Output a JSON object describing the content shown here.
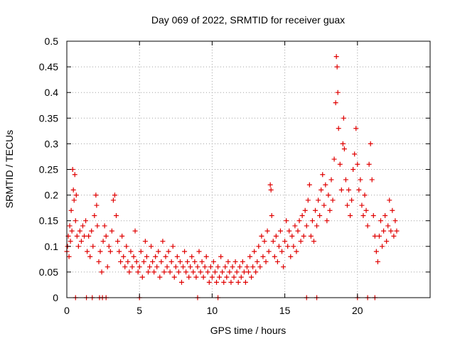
{
  "chart_data": {
    "type": "scatter",
    "title": "Day 069 of 2022, SRMTID for receiver guax",
    "xlabel": "GPS time / hours",
    "ylabel": "SRMTID / TECUs",
    "xlim": [
      0,
      25
    ],
    "ylim": [
      0,
      0.5
    ],
    "x_ticks": [
      0,
      5,
      10,
      15,
      20
    ],
    "x_tick_labels": [
      "0",
      "5",
      "10",
      "15",
      "20"
    ],
    "y_ticks": [
      0,
      0.05,
      0.1,
      0.15,
      0.2,
      0.25,
      0.3,
      0.35,
      0.4,
      0.45,
      0.5
    ],
    "y_tick_labels": [
      "0",
      "0.05",
      "0.1",
      "0.15",
      "0.2",
      "0.25",
      "0.3",
      "0.35",
      "0.4",
      "0.45",
      "0.5"
    ],
    "grid": true,
    "marker": "+",
    "color": "#e00000",
    "series": [
      {
        "name": "SRMTID",
        "points": [
          [
            0.0,
            0.09
          ],
          [
            0.05,
            0.1
          ],
          [
            0.1,
            0.12
          ],
          [
            0.15,
            0.08
          ],
          [
            0.2,
            0.14
          ],
          [
            0.25,
            0.11
          ],
          [
            0.3,
            0.17
          ],
          [
            0.35,
            0.13
          ],
          [
            0.4,
            0.25
          ],
          [
            0.45,
            0.21
          ],
          [
            0.5,
            0.19
          ],
          [
            0.55,
            0.24
          ],
          [
            0.6,
            0.15
          ],
          [
            0.65,
            0.2
          ],
          [
            0.7,
            0.12
          ],
          [
            0.8,
            0.1
          ],
          [
            0.9,
            0.13
          ],
          [
            1.0,
            0.11
          ],
          [
            1.1,
            0.14
          ],
          [
            1.2,
            0.12
          ],
          [
            1.3,
            0.15
          ],
          [
            1.4,
            0.09
          ],
          [
            1.5,
            0.12
          ],
          [
            1.6,
            0.08
          ],
          [
            1.7,
            0.13
          ],
          [
            1.8,
            0.1
          ],
          [
            1.9,
            0.16
          ],
          [
            2.0,
            0.2
          ],
          [
            2.05,
            0.18
          ],
          [
            2.1,
            0.14
          ],
          [
            2.2,
            0.07
          ],
          [
            2.3,
            0.09
          ],
          [
            2.4,
            0.05
          ],
          [
            2.5,
            0.11
          ],
          [
            2.6,
            0.14
          ],
          [
            2.7,
            0.12
          ],
          [
            2.8,
            0.06
          ],
          [
            2.9,
            0.1
          ],
          [
            3.0,
            0.09
          ],
          [
            3.1,
            0.13
          ],
          [
            3.2,
            0.19
          ],
          [
            3.3,
            0.2
          ],
          [
            3.4,
            0.16
          ],
          [
            3.5,
            0.11
          ],
          [
            3.6,
            0.09
          ],
          [
            3.7,
            0.07
          ],
          [
            3.8,
            0.12
          ],
          [
            3.9,
            0.08
          ],
          [
            4.0,
            0.06
          ],
          [
            4.1,
            0.1
          ],
          [
            4.2,
            0.07
          ],
          [
            4.3,
            0.05
          ],
          [
            4.4,
            0.09
          ],
          [
            4.5,
            0.06
          ],
          [
            4.6,
            0.08
          ],
          [
            4.7,
            0.13
          ],
          [
            4.8,
            0.07
          ],
          [
            4.9,
            0.05
          ],
          [
            5.0,
            0.06
          ],
          [
            5.1,
            0.09
          ],
          [
            5.2,
            0.04
          ],
          [
            5.3,
            0.07
          ],
          [
            5.4,
            0.11
          ],
          [
            5.5,
            0.08
          ],
          [
            5.6,
            0.05
          ],
          [
            5.7,
            0.06
          ],
          [
            5.8,
            0.1
          ],
          [
            5.9,
            0.07
          ],
          [
            6.0,
            0.05
          ],
          [
            6.1,
            0.08
          ],
          [
            6.2,
            0.06
          ],
          [
            6.3,
            0.09
          ],
          [
            6.4,
            0.04
          ],
          [
            6.5,
            0.07
          ],
          [
            6.6,
            0.11
          ],
          [
            6.7,
            0.05
          ],
          [
            6.8,
            0.08
          ],
          [
            6.9,
            0.06
          ],
          [
            7.0,
            0.09
          ],
          [
            7.1,
            0.05
          ],
          [
            7.2,
            0.07
          ],
          [
            7.3,
            0.1
          ],
          [
            7.4,
            0.04
          ],
          [
            7.5,
            0.06
          ],
          [
            7.6,
            0.08
          ],
          [
            7.7,
            0.05
          ],
          [
            7.8,
            0.07
          ],
          [
            7.9,
            0.03
          ],
          [
            8.0,
            0.06
          ],
          [
            8.1,
            0.09
          ],
          [
            8.2,
            0.05
          ],
          [
            8.3,
            0.07
          ],
          [
            8.4,
            0.04
          ],
          [
            8.5,
            0.06
          ],
          [
            8.6,
            0.08
          ],
          [
            8.7,
            0.05
          ],
          [
            8.8,
            0.07
          ],
          [
            8.9,
            0.04
          ],
          [
            9.0,
            0.06
          ],
          [
            9.1,
            0.09
          ],
          [
            9.2,
            0.05
          ],
          [
            9.3,
            0.07
          ],
          [
            9.4,
            0.04
          ],
          [
            9.5,
            0.06
          ],
          [
            9.6,
            0.08
          ],
          [
            9.7,
            0.05
          ],
          [
            9.8,
            0.03
          ],
          [
            9.9,
            0.06
          ],
          [
            10.0,
            0.04
          ],
          [
            10.1,
            0.07
          ],
          [
            10.2,
            0.05
          ],
          [
            10.3,
            0.03
          ],
          [
            10.4,
            0.06
          ],
          [
            10.5,
            0.04
          ],
          [
            10.6,
            0.08
          ],
          [
            10.7,
            0.05
          ],
          [
            10.8,
            0.03
          ],
          [
            10.9,
            0.06
          ],
          [
            11.0,
            0.04
          ],
          [
            11.1,
            0.07
          ],
          [
            11.2,
            0.05
          ],
          [
            11.3,
            0.03
          ],
          [
            11.4,
            0.06
          ],
          [
            11.5,
            0.04
          ],
          [
            11.6,
            0.07
          ],
          [
            11.7,
            0.05
          ],
          [
            11.8,
            0.03
          ],
          [
            11.9,
            0.06
          ],
          [
            12.0,
            0.04
          ],
          [
            12.1,
            0.07
          ],
          [
            12.2,
            0.05
          ],
          [
            12.3,
            0.03
          ],
          [
            12.4,
            0.06
          ],
          [
            12.5,
            0.05
          ],
          [
            12.6,
            0.08
          ],
          [
            12.7,
            0.04
          ],
          [
            12.8,
            0.06
          ],
          [
            12.9,
            0.09
          ],
          [
            13.0,
            0.05
          ],
          [
            13.1,
            0.07
          ],
          [
            13.2,
            0.1
          ],
          [
            13.3,
            0.06
          ],
          [
            13.4,
            0.12
          ],
          [
            13.5,
            0.08
          ],
          [
            13.6,
            0.11
          ],
          [
            13.7,
            0.07
          ],
          [
            13.8,
            0.13
          ],
          [
            13.9,
            0.09
          ],
          [
            14.0,
            0.22
          ],
          [
            14.05,
            0.21
          ],
          [
            14.1,
            0.16
          ],
          [
            14.2,
            0.11
          ],
          [
            14.3,
            0.08
          ],
          [
            14.4,
            0.12
          ],
          [
            14.5,
            0.07
          ],
          [
            14.6,
            0.1
          ],
          [
            14.7,
            0.13
          ],
          [
            14.8,
            0.09
          ],
          [
            14.9,
            0.06
          ],
          [
            15.0,
            0.11
          ],
          [
            15.1,
            0.15
          ],
          [
            15.2,
            0.1
          ],
          [
            15.3,
            0.13
          ],
          [
            15.4,
            0.08
          ],
          [
            15.5,
            0.12
          ],
          [
            15.6,
            0.1
          ],
          [
            15.7,
            0.14
          ],
          [
            15.8,
            0.09
          ],
          [
            15.9,
            0.13
          ],
          [
            16.0,
            0.15
          ],
          [
            16.1,
            0.11
          ],
          [
            16.2,
            0.16
          ],
          [
            16.3,
            0.12
          ],
          [
            16.4,
            0.17
          ],
          [
            16.5,
            0.14
          ],
          [
            16.6,
            0.19
          ],
          [
            16.7,
            0.22
          ],
          [
            16.8,
            0.12
          ],
          [
            16.9,
            0.15
          ],
          [
            17.0,
            0.11
          ],
          [
            17.1,
            0.17
          ],
          [
            17.2,
            0.14
          ],
          [
            17.3,
            0.19
          ],
          [
            17.4,
            0.16
          ],
          [
            17.5,
            0.21
          ],
          [
            17.6,
            0.24
          ],
          [
            17.7,
            0.18
          ],
          [
            17.8,
            0.22
          ],
          [
            17.9,
            0.15
          ],
          [
            18.0,
            0.2
          ],
          [
            18.1,
            0.17
          ],
          [
            18.2,
            0.23
          ],
          [
            18.3,
            0.19
          ],
          [
            18.4,
            0.27
          ],
          [
            18.5,
            0.38
          ],
          [
            18.55,
            0.47
          ],
          [
            18.6,
            0.45
          ],
          [
            18.65,
            0.4
          ],
          [
            18.7,
            0.33
          ],
          [
            18.8,
            0.26
          ],
          [
            18.9,
            0.21
          ],
          [
            19.0,
            0.3
          ],
          [
            19.05,
            0.35
          ],
          [
            19.1,
            0.29
          ],
          [
            19.2,
            0.23
          ],
          [
            19.3,
            0.18
          ],
          [
            19.4,
            0.21
          ],
          [
            19.5,
            0.16
          ],
          [
            19.6,
            0.19
          ],
          [
            19.7,
            0.25
          ],
          [
            19.8,
            0.28
          ],
          [
            19.9,
            0.33
          ],
          [
            20.0,
            0.26
          ],
          [
            20.1,
            0.21
          ],
          [
            20.2,
            0.23
          ],
          [
            20.3,
            0.18
          ],
          [
            20.4,
            0.16
          ],
          [
            20.5,
            0.2
          ],
          [
            20.6,
            0.17
          ],
          [
            20.7,
            0.14
          ],
          [
            20.8,
            0.26
          ],
          [
            20.9,
            0.3
          ],
          [
            21.0,
            0.23
          ],
          [
            21.1,
            0.16
          ],
          [
            21.2,
            0.12
          ],
          [
            21.3,
            0.09
          ],
          [
            21.4,
            0.07
          ],
          [
            21.5,
            0.12
          ],
          [
            21.6,
            0.15
          ],
          [
            21.7,
            0.1
          ],
          [
            21.8,
            0.13
          ],
          [
            21.9,
            0.16
          ],
          [
            22.0,
            0.11
          ],
          [
            22.1,
            0.14
          ],
          [
            22.2,
            0.19
          ],
          [
            22.3,
            0.13
          ],
          [
            22.4,
            0.17
          ],
          [
            22.5,
            0.12
          ],
          [
            22.6,
            0.15
          ],
          [
            22.7,
            0.13
          ],
          [
            0.6,
            0.0
          ],
          [
            1.35,
            0.0
          ],
          [
            1.75,
            0.0
          ],
          [
            2.25,
            0.0
          ],
          [
            2.45,
            0.0
          ],
          [
            2.7,
            0.0
          ],
          [
            5.0,
            0.0
          ],
          [
            9.0,
            0.0
          ],
          [
            10.4,
            0.0
          ],
          [
            16.5,
            0.0
          ],
          [
            17.2,
            0.0
          ],
          [
            20.0,
            0.0
          ],
          [
            20.7,
            0.0
          ],
          [
            21.2,
            0.0
          ]
        ]
      }
    ]
  }
}
